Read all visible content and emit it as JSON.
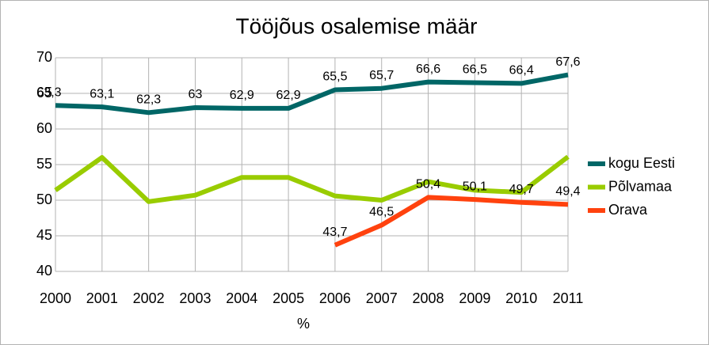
{
  "chart_data": {
    "type": "line",
    "title": "Tööjõus osalemise määr",
    "xlabel": "%",
    "categories": [
      "2000",
      "2001",
      "2002",
      "2003",
      "2004",
      "2005",
      "2006",
      "2007",
      "2008",
      "2009",
      "2010",
      "2011"
    ],
    "series": [
      {
        "name": "kogu Eesti",
        "color": "#006666",
        "values": [
          63.3,
          63.1,
          62.3,
          63,
          62.9,
          62.9,
          65.5,
          65.7,
          66.6,
          66.5,
          66.4,
          67.6
        ],
        "value_labels": [
          "63,3",
          "63,1",
          "62,3",
          "63",
          "62,9",
          "62,9",
          "65,5",
          "65,7",
          "66,6",
          "66,5",
          "66,4",
          "67,6"
        ]
      },
      {
        "name": "Põlvamaa",
        "color": "#99cc00",
        "values": [
          51.4,
          56,
          49.8,
          50.7,
          53.2,
          53.2,
          50.6,
          50,
          52.6,
          51.4,
          51.1,
          56.1
        ]
      },
      {
        "name": "Orava",
        "color": "#ff420e",
        "values": [
          null,
          null,
          null,
          null,
          null,
          null,
          43.7,
          46.5,
          50.4,
          50.1,
          49.7,
          49.4
        ],
        "value_labels": [
          null,
          null,
          null,
          null,
          null,
          null,
          "43,7",
          "46,5",
          "50,4",
          "50,1",
          "49,7",
          "49,4"
        ]
      }
    ],
    "ylim": [
      40,
      70
    ],
    "yticks": [
      40,
      45,
      50,
      55,
      60,
      65,
      70
    ],
    "grid": true,
    "legend_position": "right"
  }
}
